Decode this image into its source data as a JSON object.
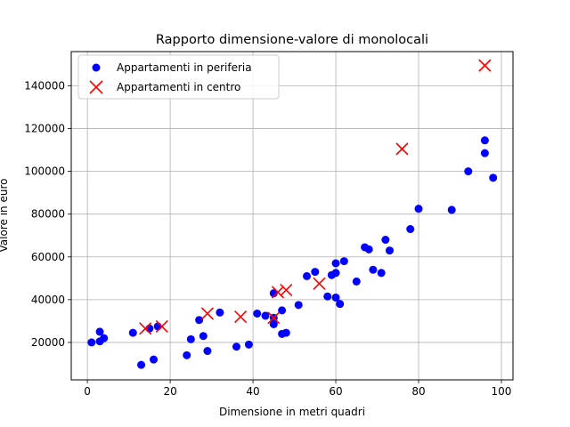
{
  "chart_data": {
    "type": "scatter",
    "title": "Rapporto dimensione-valore di monolocali",
    "xlabel": "Dimensione in metri quadri",
    "ylabel": "Valore in euro",
    "xlim": [
      -3.9,
      102.8
    ],
    "ylim": [
      2500,
      156000
    ],
    "xticks": [
      0,
      20,
      40,
      60,
      80,
      100
    ],
    "yticks": [
      20000,
      40000,
      60000,
      80000,
      100000,
      120000,
      140000
    ],
    "grid": true,
    "legend_position": "top-left",
    "series": [
      {
        "name": "Appartamenti in periferia",
        "marker": "circle",
        "color": "#0000ff",
        "points": [
          [
            1,
            20000
          ],
          [
            3,
            20500
          ],
          [
            3,
            25000
          ],
          [
            4,
            22000
          ],
          [
            11,
            24500
          ],
          [
            13,
            9500
          ],
          [
            15,
            26500
          ],
          [
            16,
            12000
          ],
          [
            17,
            27500
          ],
          [
            24,
            14000
          ],
          [
            25,
            21500
          ],
          [
            27,
            30500
          ],
          [
            28,
            23000
          ],
          [
            29,
            16000
          ],
          [
            32,
            34000
          ],
          [
            36,
            18000
          ],
          [
            39,
            19000
          ],
          [
            41,
            33500
          ],
          [
            43,
            32500
          ],
          [
            45,
            43000
          ],
          [
            45,
            28500
          ],
          [
            45,
            31500
          ],
          [
            47,
            35000
          ],
          [
            47,
            24000
          ],
          [
            48,
            24500
          ],
          [
            51,
            37500
          ],
          [
            53,
            51000
          ],
          [
            55,
            53000
          ],
          [
            58,
            41500
          ],
          [
            59,
            51500
          ],
          [
            60,
            52500
          ],
          [
            60,
            57000
          ],
          [
            60,
            41000
          ],
          [
            61,
            38000
          ],
          [
            62,
            58000
          ],
          [
            65,
            48500
          ],
          [
            67,
            64500
          ],
          [
            68,
            63500
          ],
          [
            69,
            54000
          ],
          [
            71,
            52500
          ],
          [
            72,
            68000
          ],
          [
            73,
            63000
          ],
          [
            78,
            73000
          ],
          [
            80,
            82500
          ],
          [
            88,
            82000
          ],
          [
            92,
            100000
          ],
          [
            96,
            114500
          ],
          [
            96,
            108500
          ],
          [
            98,
            97000
          ]
        ]
      },
      {
        "name": "Appartamenti in centro",
        "marker": "x",
        "color": "#ff0000",
        "points": [
          [
            14,
            26500
          ],
          [
            18,
            27500
          ],
          [
            29,
            33500
          ],
          [
            37,
            32000
          ],
          [
            45,
            31500
          ],
          [
            46,
            43500
          ],
          [
            48,
            44500
          ],
          [
            56,
            47500
          ],
          [
            76,
            110500
          ],
          [
            96,
            149500
          ]
        ]
      }
    ]
  }
}
